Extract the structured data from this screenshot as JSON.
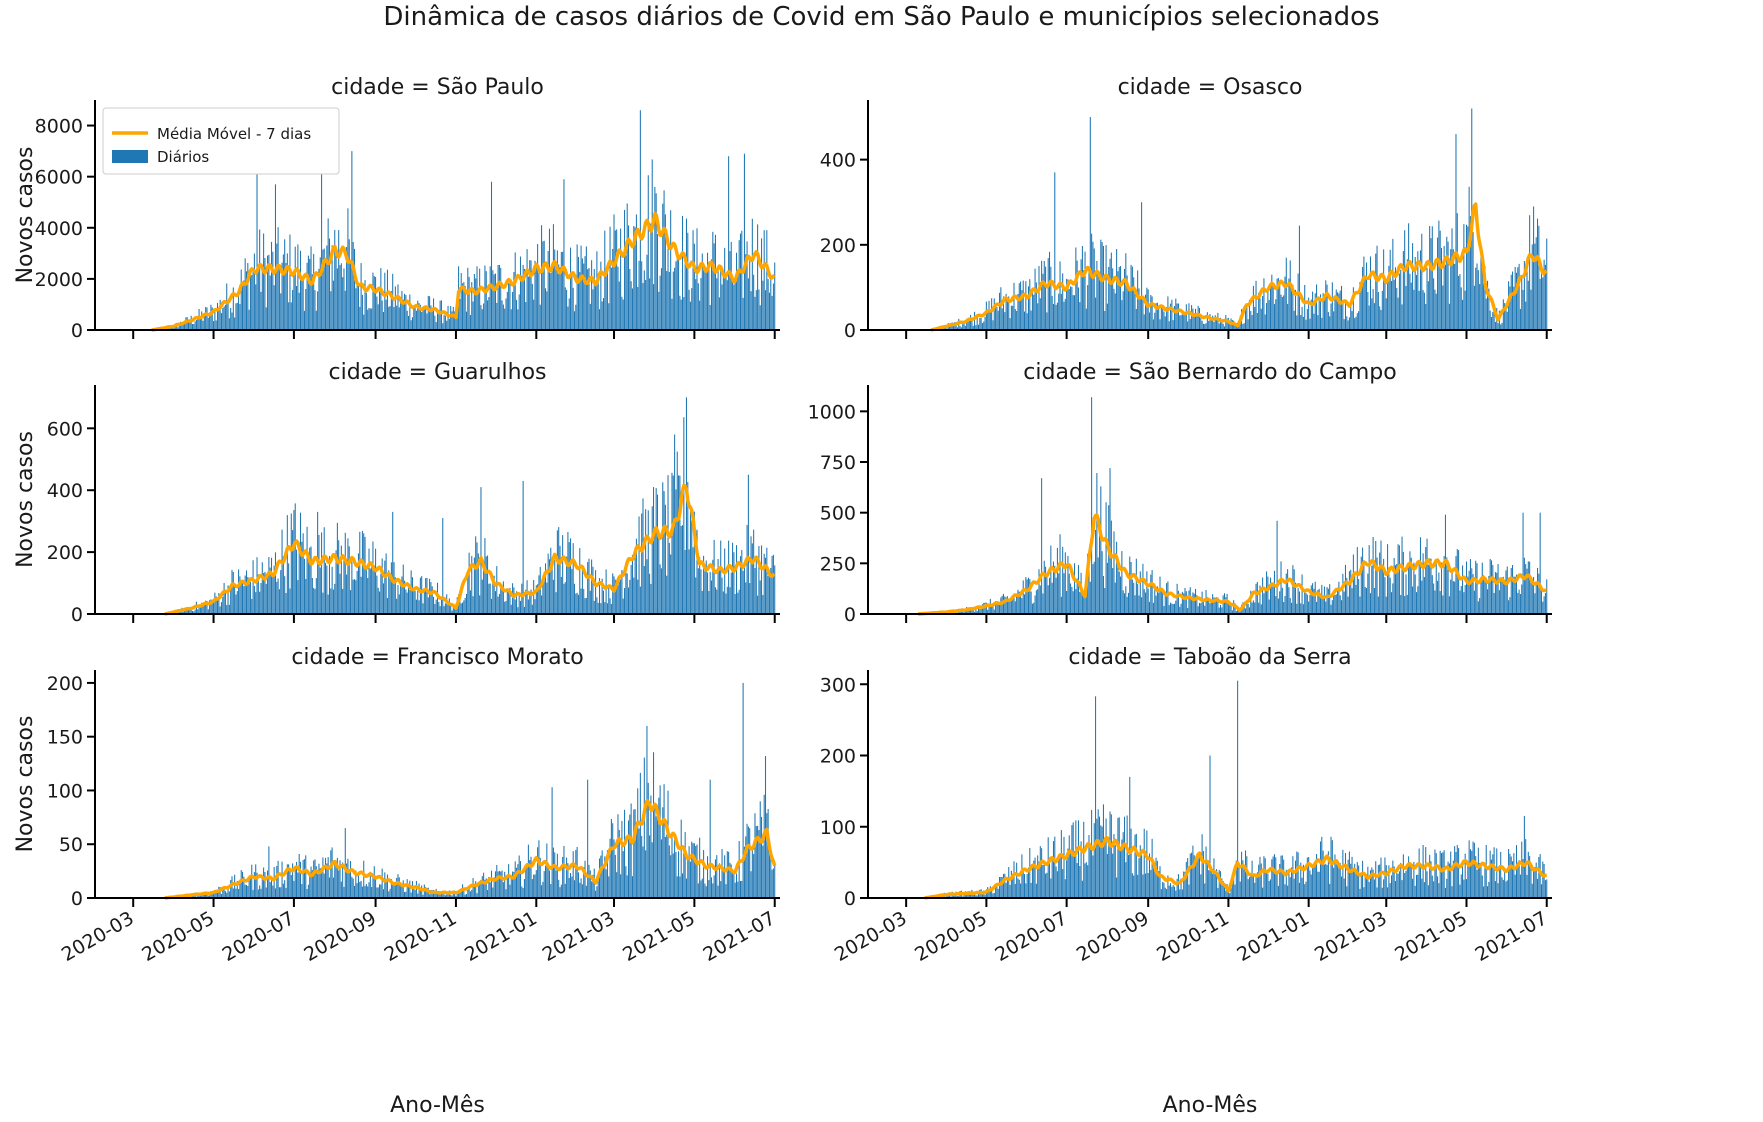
{
  "figure": {
    "title": "Dinâmica de casos diários de Covid em São Paulo e municípios selecionados",
    "xlabel": "Ano-Mês",
    "ylabel": "Novos casos",
    "legend": {
      "line": "Média Móvel - 7 dias",
      "bars": "Diários",
      "placement": "upper-left of first panel"
    },
    "colors": {
      "bars": "#1f77b4",
      "line": "#ffa500"
    }
  },
  "chart_data": [
    {
      "type": "bar",
      "title": "cidade = São Paulo",
      "xlim": [
        "2020-02-01",
        "2021-07-05"
      ],
      "ylim": [
        0,
        9000
      ],
      "yticks": [
        0,
        2000,
        4000,
        6000,
        8000
      ],
      "anchors": [
        [
          "2020-03-15",
          0
        ],
        [
          "2020-04-01",
          150
        ],
        [
          "2020-04-15",
          400
        ],
        [
          "2020-05-01",
          700
        ],
        [
          "2020-05-20",
          1500
        ],
        [
          "2020-06-01",
          2400
        ],
        [
          "2020-06-15",
          2400
        ],
        [
          "2020-07-01",
          2300
        ],
        [
          "2020-07-15",
          1900
        ],
        [
          "2020-08-01",
          3100
        ],
        [
          "2020-08-10",
          3000
        ],
        [
          "2020-08-20",
          1700
        ],
        [
          "2020-09-01",
          1600
        ],
        [
          "2020-09-15",
          1300
        ],
        [
          "2020-10-01",
          900
        ],
        [
          "2020-10-15",
          800
        ],
        [
          "2020-11-01",
          500
        ],
        [
          "2020-11-03",
          1600
        ],
        [
          "2020-11-15",
          1500
        ],
        [
          "2020-12-01",
          1700
        ],
        [
          "2020-12-15",
          1900
        ],
        [
          "2021-01-01",
          2400
        ],
        [
          "2021-01-15",
          2500
        ],
        [
          "2021-02-01",
          2000
        ],
        [
          "2021-02-15",
          1900
        ],
        [
          "2021-03-01",
          2700
        ],
        [
          "2021-03-15",
          3500
        ],
        [
          "2021-04-01",
          4300
        ],
        [
          "2021-04-15",
          3200
        ],
        [
          "2021-05-01",
          2400
        ],
        [
          "2021-05-15",
          2500
        ],
        [
          "2021-06-01",
          2000
        ],
        [
          "2021-06-15",
          3000
        ],
        [
          "2021-07-01",
          2000
        ]
      ],
      "spikes": [
        [
          "2020-06-03",
          6900
        ],
        [
          "2020-06-17",
          5700
        ],
        [
          "2020-07-22",
          6900
        ],
        [
          "2020-08-14",
          7000
        ],
        [
          "2020-11-28",
          5800
        ],
        [
          "2021-01-22",
          5900
        ],
        [
          "2021-03-21",
          8600
        ],
        [
          "2021-05-27",
          6800
        ],
        [
          "2021-06-08",
          6900
        ]
      ]
    },
    {
      "type": "bar",
      "title": "cidade = Osasco",
      "xlim": [
        "2020-02-01",
        "2021-07-05"
      ],
      "ylim": [
        0,
        540
      ],
      "yticks": [
        0,
        200,
        400
      ],
      "anchors": [
        [
          "2020-03-20",
          0
        ],
        [
          "2020-04-15",
          20
        ],
        [
          "2020-05-01",
          40
        ],
        [
          "2020-05-15",
          70
        ],
        [
          "2020-06-01",
          80
        ],
        [
          "2020-06-15",
          110
        ],
        [
          "2020-07-01",
          100
        ],
        [
          "2020-07-15",
          140
        ],
        [
          "2020-08-01",
          120
        ],
        [
          "2020-08-15",
          110
        ],
        [
          "2020-09-01",
          60
        ],
        [
          "2020-09-15",
          50
        ],
        [
          "2020-10-01",
          40
        ],
        [
          "2020-10-15",
          30
        ],
        [
          "2020-11-01",
          20
        ],
        [
          "2020-11-08",
          10
        ],
        [
          "2020-11-15",
          60
        ],
        [
          "2020-12-01",
          100
        ],
        [
          "2020-12-15",
          110
        ],
        [
          "2021-01-01",
          60
        ],
        [
          "2021-01-15",
          80
        ],
        [
          "2021-02-01",
          60
        ],
        [
          "2021-02-15",
          130
        ],
        [
          "2021-03-01",
          120
        ],
        [
          "2021-03-15",
          150
        ],
        [
          "2021-04-01",
          150
        ],
        [
          "2021-04-15",
          160
        ],
        [
          "2021-05-01",
          180
        ],
        [
          "2021-05-08",
          290
        ],
        [
          "2021-05-15",
          110
        ],
        [
          "2021-05-25",
          25
        ],
        [
          "2021-06-10",
          110
        ],
        [
          "2021-06-20",
          180
        ],
        [
          "2021-07-01",
          130
        ]
      ],
      "spikes": [
        [
          "2020-06-22",
          370
        ],
        [
          "2020-07-19",
          500
        ],
        [
          "2020-08-27",
          300
        ],
        [
          "2020-12-25",
          245
        ],
        [
          "2021-04-23",
          460
        ],
        [
          "2021-05-05",
          520
        ],
        [
          "2021-06-21",
          290
        ]
      ]
    },
    {
      "type": "bar",
      "title": "cidade = Guarulhos",
      "xlim": [
        "2020-02-01",
        "2021-07-05"
      ],
      "ylim": [
        0,
        740
      ],
      "yticks": [
        0,
        200,
        400,
        600
      ],
      "anchors": [
        [
          "2020-03-25",
          0
        ],
        [
          "2020-04-15",
          20
        ],
        [
          "2020-05-01",
          40
        ],
        [
          "2020-05-15",
          90
        ],
        [
          "2020-06-01",
          110
        ],
        [
          "2020-06-15",
          130
        ],
        [
          "2020-07-01",
          230
        ],
        [
          "2020-07-15",
          170
        ],
        [
          "2020-08-01",
          180
        ],
        [
          "2020-08-15",
          170
        ],
        [
          "2020-09-01",
          150
        ],
        [
          "2020-09-15",
          110
        ],
        [
          "2020-10-01",
          80
        ],
        [
          "2020-10-15",
          70
        ],
        [
          "2020-11-01",
          20
        ],
        [
          "2020-11-10",
          140
        ],
        [
          "2020-11-20",
          170
        ],
        [
          "2020-12-01",
          100
        ],
        [
          "2020-12-15",
          60
        ],
        [
          "2021-01-01",
          70
        ],
        [
          "2021-01-15",
          180
        ],
        [
          "2021-02-01",
          160
        ],
        [
          "2021-02-15",
          100
        ],
        [
          "2021-03-01",
          80
        ],
        [
          "2021-03-15",
          190
        ],
        [
          "2021-04-01",
          260
        ],
        [
          "2021-04-15",
          270
        ],
        [
          "2021-04-25",
          420
        ],
        [
          "2021-05-05",
          160
        ],
        [
          "2021-05-20",
          140
        ],
        [
          "2021-06-01",
          150
        ],
        [
          "2021-06-15",
          180
        ],
        [
          "2021-07-01",
          120
        ]
      ],
      "spikes": [
        [
          "2020-07-19",
          330
        ],
        [
          "2020-09-14",
          330
        ],
        [
          "2020-10-22",
          310
        ],
        [
          "2020-11-20",
          410
        ],
        [
          "2020-12-22",
          430
        ],
        [
          "2021-04-16",
          580
        ],
        [
          "2021-04-25",
          700
        ],
        [
          "2021-06-11",
          450
        ]
      ]
    },
    {
      "type": "bar",
      "title": "cidade = São Bernardo do Campo",
      "xlim": [
        "2020-02-01",
        "2021-07-05"
      ],
      "ylim": [
        0,
        1130
      ],
      "yticks": [
        0,
        250,
        500,
        750,
        1000
      ],
      "anchors": [
        [
          "2020-03-10",
          0
        ],
        [
          "2020-04-01",
          10
        ],
        [
          "2020-04-15",
          20
        ],
        [
          "2020-05-01",
          40
        ],
        [
          "2020-05-15",
          60
        ],
        [
          "2020-06-01",
          120
        ],
        [
          "2020-06-15",
          200
        ],
        [
          "2020-07-01",
          250
        ],
        [
          "2020-07-15",
          90
        ],
        [
          "2020-07-22",
          490
        ],
        [
          "2020-08-01",
          330
        ],
        [
          "2020-08-15",
          200
        ],
        [
          "2020-09-01",
          150
        ],
        [
          "2020-09-15",
          100
        ],
        [
          "2020-10-01",
          80
        ],
        [
          "2020-10-15",
          70
        ],
        [
          "2020-11-01",
          60
        ],
        [
          "2020-11-10",
          20
        ],
        [
          "2020-11-20",
          100
        ],
        [
          "2020-12-01",
          130
        ],
        [
          "2020-12-15",
          170
        ],
        [
          "2021-01-01",
          110
        ],
        [
          "2021-01-15",
          80
        ],
        [
          "2021-02-01",
          160
        ],
        [
          "2021-02-15",
          260
        ],
        [
          "2021-03-01",
          210
        ],
        [
          "2021-03-15",
          230
        ],
        [
          "2021-04-01",
          250
        ],
        [
          "2021-04-15",
          250
        ],
        [
          "2021-05-01",
          160
        ],
        [
          "2021-05-15",
          170
        ],
        [
          "2021-06-01",
          160
        ],
        [
          "2021-06-15",
          190
        ],
        [
          "2021-07-01",
          110
        ]
      ],
      "spikes": [
        [
          "2020-06-12",
          670
        ],
        [
          "2020-07-20",
          1070
        ],
        [
          "2020-08-03",
          720
        ],
        [
          "2020-12-08",
          460
        ],
        [
          "2021-04-15",
          490
        ],
        [
          "2021-06-13",
          500
        ],
        [
          "2021-06-26",
          500
        ]
      ]
    },
    {
      "type": "bar",
      "title": "cidade = Francisco Morato",
      "xlim": [
        "2020-02-01",
        "2021-07-05"
      ],
      "ylim": [
        0,
        212
      ],
      "yticks": [
        0,
        50,
        100,
        150,
        200
      ],
      "anchors": [
        [
          "2020-03-25",
          0
        ],
        [
          "2020-04-15",
          3
        ],
        [
          "2020-05-01",
          5
        ],
        [
          "2020-05-15",
          12
        ],
        [
          "2020-06-01",
          20
        ],
        [
          "2020-06-15",
          18
        ],
        [
          "2020-07-01",
          28
        ],
        [
          "2020-07-15",
          22
        ],
        [
          "2020-08-01",
          32
        ],
        [
          "2020-08-15",
          24
        ],
        [
          "2020-09-01",
          20
        ],
        [
          "2020-09-15",
          14
        ],
        [
          "2020-10-01",
          10
        ],
        [
          "2020-10-15",
          5
        ],
        [
          "2020-11-01",
          5
        ],
        [
          "2020-11-15",
          12
        ],
        [
          "2020-12-01",
          18
        ],
        [
          "2020-12-15",
          20
        ],
        [
          "2021-01-01",
          35
        ],
        [
          "2021-01-15",
          28
        ],
        [
          "2021-02-01",
          30
        ],
        [
          "2021-02-15",
          15
        ],
        [
          "2021-03-01",
          50
        ],
        [
          "2021-03-15",
          55
        ],
        [
          "2021-03-28",
          90
        ],
        [
          "2021-04-10",
          65
        ],
        [
          "2021-04-25",
          40
        ],
        [
          "2021-05-10",
          30
        ],
        [
          "2021-05-20",
          28
        ],
        [
          "2021-06-01",
          25
        ],
        [
          "2021-06-10",
          45
        ],
        [
          "2021-06-25",
          60
        ],
        [
          "2021-07-01",
          28
        ]
      ],
      "spikes": [
        [
          "2020-06-12",
          48
        ],
        [
          "2020-08-09",
          65
        ],
        [
          "2021-01-13",
          103
        ],
        [
          "2021-02-09",
          110
        ],
        [
          "2021-03-26",
          160
        ],
        [
          "2021-05-13",
          110
        ],
        [
          "2021-06-07",
          200
        ],
        [
          "2021-06-24",
          132
        ]
      ]
    },
    {
      "type": "bar",
      "title": "cidade = Taboão da Serra",
      "xlim": [
        "2020-02-01",
        "2021-07-05"
      ],
      "ylim": [
        0,
        320
      ],
      "yticks": [
        0,
        100,
        200,
        300
      ],
      "anchors": [
        [
          "2020-03-15",
          0
        ],
        [
          "2020-04-01",
          5
        ],
        [
          "2020-05-01",
          8
        ],
        [
          "2020-05-15",
          25
        ],
        [
          "2020-06-01",
          40
        ],
        [
          "2020-06-15",
          50
        ],
        [
          "2020-07-01",
          60
        ],
        [
          "2020-07-15",
          70
        ],
        [
          "2020-08-01",
          80
        ],
        [
          "2020-08-15",
          70
        ],
        [
          "2020-09-01",
          60
        ],
        [
          "2020-09-10",
          30
        ],
        [
          "2020-09-25",
          20
        ],
        [
          "2020-10-10",
          60
        ],
        [
          "2020-10-20",
          40
        ],
        [
          "2020-11-01",
          10
        ],
        [
          "2020-11-08",
          50
        ],
        [
          "2020-11-20",
          30
        ],
        [
          "2020-12-01",
          40
        ],
        [
          "2020-12-15",
          35
        ],
        [
          "2021-01-01",
          45
        ],
        [
          "2021-01-15",
          55
        ],
        [
          "2021-02-01",
          40
        ],
        [
          "2021-02-15",
          30
        ],
        [
          "2021-03-01",
          35
        ],
        [
          "2021-03-15",
          45
        ],
        [
          "2021-04-01",
          45
        ],
        [
          "2021-04-15",
          40
        ],
        [
          "2021-05-01",
          50
        ],
        [
          "2021-05-15",
          45
        ],
        [
          "2021-06-01",
          40
        ],
        [
          "2021-06-15",
          50
        ],
        [
          "2021-07-01",
          30
        ]
      ],
      "spikes": [
        [
          "2020-07-23",
          283
        ],
        [
          "2020-08-18",
          170
        ],
        [
          "2020-10-18",
          200
        ],
        [
          "2020-11-08",
          305
        ],
        [
          "2021-06-14",
          115
        ]
      ]
    }
  ]
}
